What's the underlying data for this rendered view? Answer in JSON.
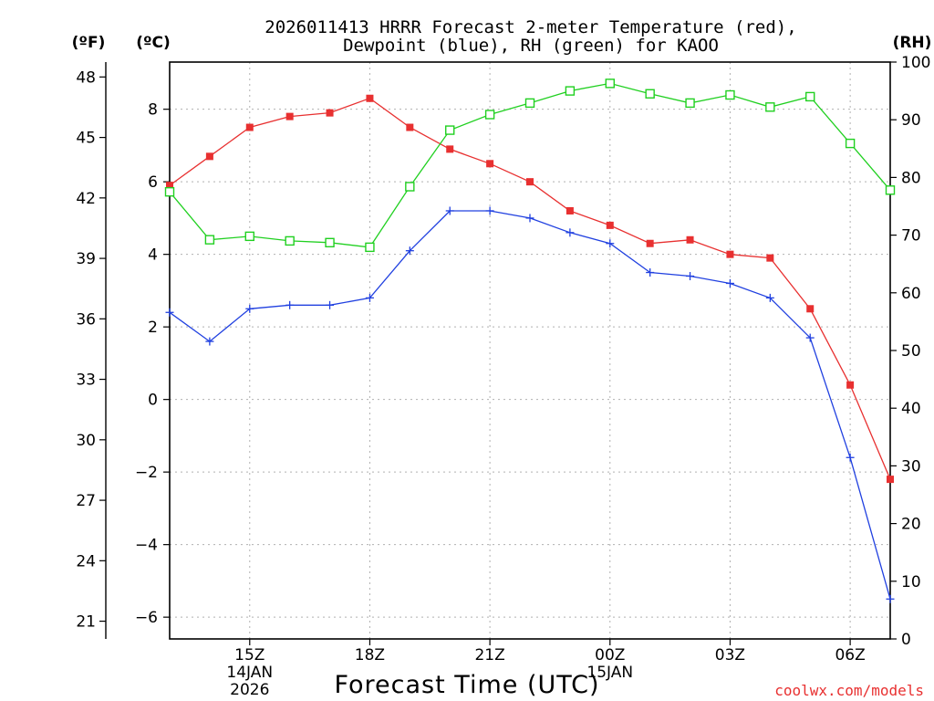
{
  "chart_data": {
    "type": "line",
    "title_line1": "2026011413 HRRR Forecast 2-meter Temperature (red),",
    "title_line2": "Dewpoint (blue), RH (green) for KAOO",
    "xlabel": "Forecast Time (UTC)",
    "credit": "coolwx.com/models",
    "units": {
      "fahrenheit": "(ºF)",
      "celsius": "(ºC)",
      "rh": "(RH)"
    },
    "colors": {
      "temperature": "#e83030",
      "dewpoint": "#2040e0",
      "rh": "#20d020"
    },
    "xlim": [
      13,
      31
    ],
    "x": [
      13,
      14,
      15,
      16,
      17,
      18,
      19,
      20,
      21,
      22,
      23,
      24,
      25,
      26,
      27,
      28,
      29,
      30,
      31
    ],
    "x_ticks": [
      {
        "x": 15,
        "label": "15Z",
        "sub1": "14JAN",
        "sub2": "2026"
      },
      {
        "x": 18,
        "label": "18Z",
        "sub1": "",
        "sub2": ""
      },
      {
        "x": 21,
        "label": "21Z",
        "sub1": "",
        "sub2": ""
      },
      {
        "x": 24,
        "label": "00Z",
        "sub1": "15JAN",
        "sub2": ""
      },
      {
        "x": 27,
        "label": "03Z",
        "sub1": "",
        "sub2": ""
      },
      {
        "x": 30,
        "label": "06Z",
        "sub1": "",
        "sub2": ""
      }
    ],
    "ylim_c": [
      -6.6,
      9.3
    ],
    "yticks_c": [
      8,
      6,
      4,
      2,
      0,
      -2,
      -4,
      -6
    ],
    "yticklabels_c": [
      "8",
      "6",
      "4",
      "2",
      "0",
      "−2",
      "−4",
      "−6"
    ],
    "yticks_f": [
      48,
      45,
      42,
      39,
      36,
      33,
      30,
      27,
      24,
      21
    ],
    "yticks_rh": [
      100,
      90,
      80,
      70,
      60,
      50,
      40,
      30,
      20,
      10,
      0
    ],
    "series": [
      {
        "name": "Temperature",
        "axis": "c",
        "marker": "filled-square",
        "values": [
          5.9,
          6.7,
          7.5,
          7.8,
          7.9,
          8.3,
          7.5,
          6.9,
          6.5,
          6.0,
          5.2,
          4.8,
          4.3,
          4.4,
          4.0,
          3.9,
          2.5,
          0.4,
          -2.2
        ]
      },
      {
        "name": "Dewpoint",
        "axis": "c",
        "marker": "plus",
        "values": [
          2.4,
          1.6,
          2.5,
          2.6,
          2.6,
          2.8,
          4.1,
          5.2,
          5.2,
          5.0,
          4.6,
          4.3,
          3.5,
          3.4,
          3.2,
          2.8,
          1.7,
          -1.6,
          -5.5
        ]
      },
      {
        "name": "RH",
        "axis": "rh",
        "marker": "open-square",
        "values": [
          77.5,
          69.2,
          69.8,
          69.0,
          68.7,
          67.9,
          78.4,
          88.2,
          90.9,
          92.9,
          95.0,
          96.3,
          94.5,
          92.9,
          94.3,
          92.2,
          94.0,
          85.9,
          77.8
        ]
      }
    ]
  }
}
